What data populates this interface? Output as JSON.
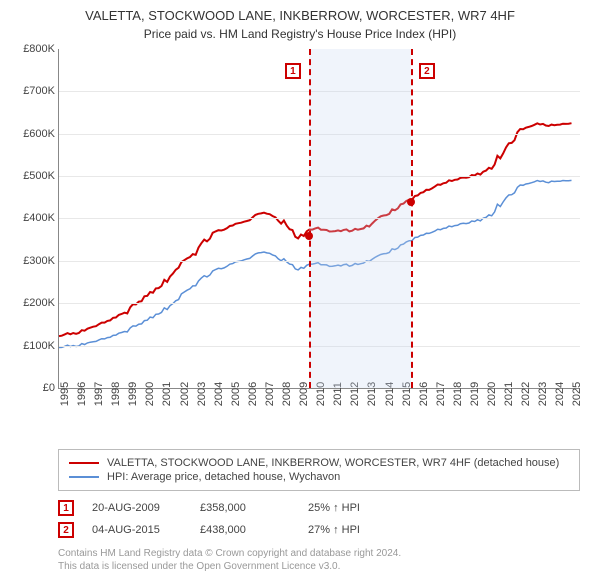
{
  "title": "VALETTA, STOCKWOOD LANE, INKBERROW, WORCESTER, WR7 4HF",
  "subtitle": "Price paid vs. HM Land Registry's House Price Index (HPI)",
  "chart": {
    "type": "line",
    "x_years": [
      1995,
      1996,
      1997,
      1998,
      1999,
      2000,
      2001,
      2002,
      2003,
      2004,
      2005,
      2006,
      2007,
      2008,
      2009,
      2010,
      2011,
      2012,
      2013,
      2014,
      2015,
      2016,
      2017,
      2018,
      2019,
      2020,
      2021,
      2022,
      2023,
      2024,
      2025
    ],
    "xlim": [
      1995,
      2025.5
    ],
    "ylim": [
      0,
      800000
    ],
    "ytick_step": 100000,
    "y_tick_labels": [
      "£0",
      "£100K",
      "£200K",
      "£300K",
      "£400K",
      "£500K",
      "£600K",
      "£700K",
      "£800K"
    ],
    "grid_color": "#e8e8e8",
    "axis_color": "#888888",
    "background_color": "#ffffff",
    "title_fontsize": 13,
    "label_fontsize": 11,
    "shade_band": {
      "x_start": 2009.63,
      "x_end": 2015.6,
      "color": "rgba(200,215,240,0.28)"
    },
    "series": [
      {
        "id": "price_paid",
        "label": "VALETTA, STOCKWOOD LANE, INKBERROW, WORCESTER, WR7 4HF (detached house)",
        "color": "#cc0000",
        "line_width": 2,
        "points_y_by_year": {
          "1995": 125000,
          "1996": 130000,
          "1997": 143000,
          "1998": 160000,
          "1999": 180000,
          "2000": 215000,
          "2001": 240000,
          "2002": 285000,
          "2003": 320000,
          "2004": 365000,
          "2005": 380000,
          "2006": 395000,
          "2007": 415000,
          "2008": 395000,
          "2009": 355000,
          "2010": 378000,
          "2011": 370000,
          "2012": 372000,
          "2013": 380000,
          "2014": 405000,
          "2015": 430000,
          "2016": 453000,
          "2017": 475000,
          "2018": 490000,
          "2019": 498000,
          "2020": 510000,
          "2021": 555000,
          "2022": 610000,
          "2023": 625000,
          "2024": 618000,
          "2025": 625000
        }
      },
      {
        "id": "hpi",
        "label": "HPI: Average price, detached house, Wychavon",
        "color": "#5b8fd6",
        "line_width": 1.5,
        "points_y_by_year": {
          "1995": 98000,
          "1996": 100000,
          "1997": 108000,
          "1998": 120000,
          "1999": 135000,
          "2000": 158000,
          "2001": 178000,
          "2002": 210000,
          "2003": 245000,
          "2004": 275000,
          "2005": 290000,
          "2006": 305000,
          "2007": 322000,
          "2008": 305000,
          "2009": 280000,
          "2010": 295000,
          "2011": 288000,
          "2012": 290000,
          "2013": 298000,
          "2014": 315000,
          "2015": 335000,
          "2016": 355000,
          "2017": 370000,
          "2018": 382000,
          "2019": 390000,
          "2020": 400000,
          "2021": 440000,
          "2022": 478000,
          "2023": 490000,
          "2024": 485000,
          "2025": 490000
        }
      }
    ],
    "markers": [
      {
        "n": "1",
        "x": 2009.63,
        "y": 358000,
        "line_color": "#cc0000",
        "box_color": "#cc0000"
      },
      {
        "n": "2",
        "x": 2015.6,
        "y": 438000,
        "line_color": "#cc0000",
        "box_color": "#cc0000"
      }
    ],
    "marker_dot_color": "#cc0000"
  },
  "legend": {
    "border_color": "#bbbbbb",
    "rows": [
      {
        "color": "#cc0000",
        "label_ref": "chart.series.0.label"
      },
      {
        "color": "#5b8fd6",
        "label_ref": "chart.series.1.label"
      }
    ]
  },
  "annotations": [
    {
      "n": "1",
      "date": "20-AUG-2009",
      "price": "£358,000",
      "delta": "25% ↑ HPI",
      "box_color": "#cc0000"
    },
    {
      "n": "2",
      "date": "04-AUG-2015",
      "price": "£438,000",
      "delta": "27% ↑ HPI",
      "box_color": "#cc0000"
    }
  ],
  "footnote": {
    "line1": "Contains HM Land Registry data © Crown copyright and database right 2024.",
    "line2": "This data is licensed under the Open Government Licence v3.0."
  }
}
